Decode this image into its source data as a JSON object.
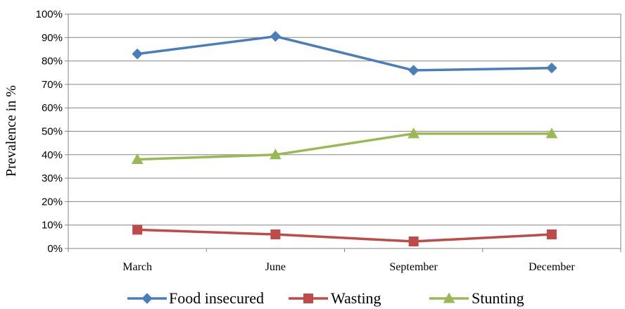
{
  "chart_data": {
    "type": "line",
    "categories": [
      "March",
      "June",
      "September",
      "December"
    ],
    "ylabel": "Prevalence in %",
    "ylim": [
      0,
      100
    ],
    "yticks": [
      "0%",
      "10%",
      "20%",
      "30%",
      "40%",
      "50%",
      "60%",
      "70%",
      "80%",
      "90%",
      "100%"
    ],
    "grid": true,
    "legend_position": "bottom",
    "series": [
      {
        "name": "Food insecured",
        "values": [
          83,
          90.5,
          76,
          77
        ],
        "color": "#4a7ebb",
        "marker": "diamond"
      },
      {
        "name": "Wasting",
        "values": [
          8,
          6,
          3,
          6
        ],
        "color": "#be4b48",
        "marker": "square"
      },
      {
        "name": "Stunting",
        "values": [
          38,
          40,
          49,
          49
        ],
        "color": "#98b954",
        "marker": "triangle"
      }
    ]
  }
}
